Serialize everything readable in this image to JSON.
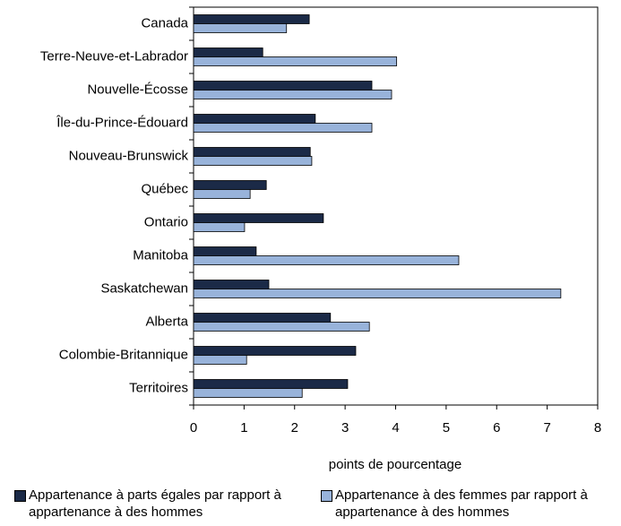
{
  "chart_data": {
    "type": "bar",
    "orientation": "horizontal",
    "categories": [
      "Canada",
      "Terre-Neuve-et-Labrador",
      "Nouvelle-Écosse",
      "Île-du-Prince-Édouard",
      "Nouveau-Brunswick",
      "Québec",
      "Ontario",
      "Manitoba",
      "Saskatchewan",
      "Alberta",
      "Colombie-Britannique",
      "Territoires"
    ],
    "series": [
      {
        "name": "Appartenance à parts égales par rapport à appartenance à des hommes",
        "color": "#1b2a47",
        "values": [
          2.29,
          1.37,
          3.53,
          2.41,
          2.31,
          1.44,
          2.57,
          1.24,
          1.49,
          2.71,
          3.21,
          3.05
        ]
      },
      {
        "name": "Appartenance à des femmes par rapport à appartenance à des hommes",
        "color": "#98b3da",
        "values": [
          1.84,
          4.02,
          3.92,
          3.53,
          2.34,
          1.12,
          1.01,
          5.25,
          7.27,
          3.48,
          1.05,
          2.15
        ]
      }
    ],
    "xlabel": "points de pourcentage",
    "xlim": [
      0,
      8
    ],
    "xticks": [
      0,
      1,
      2,
      3,
      4,
      5,
      6,
      7,
      8
    ],
    "grid": false
  }
}
